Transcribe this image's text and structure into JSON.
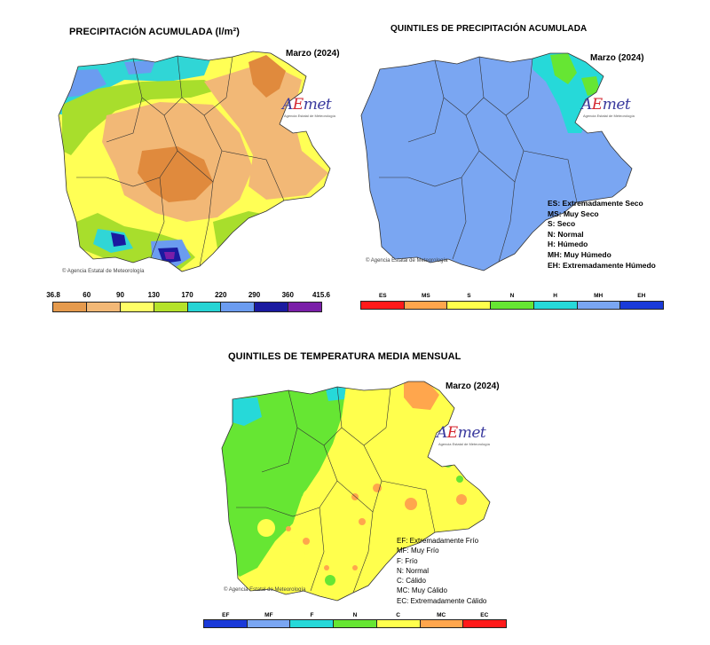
{
  "precip_map": {
    "title": "PRECIPITACIÓN ACUMULADA  (l/m²)",
    "date": "Marzo (2024)",
    "scale_labels": [
      "36.8",
      "60",
      "90",
      "130",
      "170",
      "220",
      "290",
      "360",
      "415.6"
    ],
    "scale_colors": [
      "#e59a4d",
      "#f2b876",
      "#ffff66",
      "#b5e22a",
      "#26d4d4",
      "#6b9cf0",
      "#1a1aa0",
      "#7a1ea8"
    ]
  },
  "precip_quintiles": {
    "title": "QUINTILES DE PRECIPITACIÓN ACUMULADA",
    "date": "Marzo (2024)",
    "legend": [
      "ES: Extremadamente Seco",
      "MS: Muy Seco",
      "S: Seco",
      "N: Normal",
      "H: Húmedo",
      "MH: Muy Húmedo",
      "EH: Extremadamente Húmedo"
    ],
    "bar_labels": [
      "ES",
      "MS",
      "S",
      "N",
      "H",
      "MH",
      "EH"
    ],
    "bar_colors": [
      "#ff1a1a",
      "#ffa64d",
      "#ffff4d",
      "#66e633",
      "#26d9d9",
      "#7aa6f2",
      "#1a3ad9"
    ]
  },
  "temp_quintiles": {
    "title": "QUINTILES DE TEMPERATURA MEDIA MENSUAL",
    "date": "Marzo (2024)",
    "legend": [
      "EF: Extremadamente Frío",
      "MF: Muy Frío",
      "F: Frío",
      "N: Normal",
      "C: Cálido",
      "MC: Muy Cálido",
      "EC: Extremadamente Cálido"
    ],
    "bar_labels": [
      "EF",
      "MF",
      "F",
      "N",
      "C",
      "MC",
      "EC"
    ],
    "bar_colors": [
      "#1a3ad9",
      "#7aa6f2",
      "#26d9d9",
      "#66e633",
      "#ffff4d",
      "#ffa64d",
      "#ff1a1a"
    ]
  },
  "branding": {
    "logo_text_a": "A",
    "logo_text_e": "E",
    "logo_text_rest": "met",
    "logo_subtitle": "Agencia Estatal de Meteorología",
    "copyright": "© Agencia Estatal de Meteorología"
  }
}
